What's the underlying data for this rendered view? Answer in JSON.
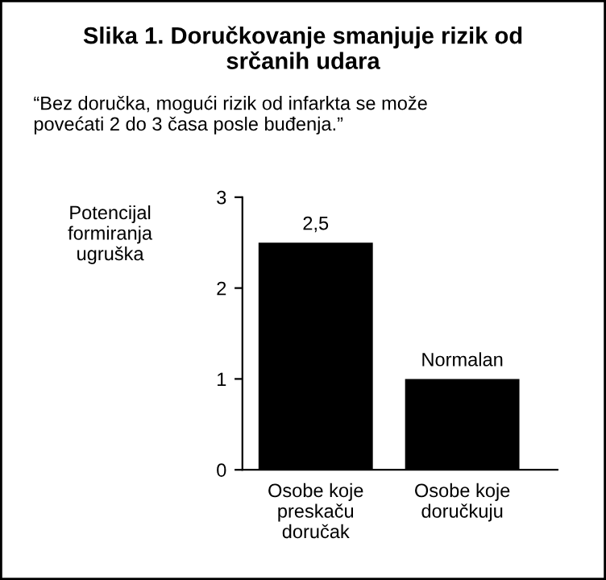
{
  "chart_data": {
    "type": "bar",
    "title": "Slika 1. Doručkovanje smanjuje rizik od\nsrčanih udara",
    "subtitle": "“Bez doručka, mogući rizik od infarkta se može\npovećati 2 do 3 časa posle buđenja.”",
    "ylabel": "Potencijal\nformiranja\nugruška",
    "categories": [
      "Osobe koje\npreskaču\ndoručak",
      "Osobe koje\ndoručkuju"
    ],
    "values": [
      2.5,
      1
    ],
    "color": "#000000",
    "value_labels": [
      "2,5",
      "Normalan"
    ],
    "ylim": [
      0,
      3
    ],
    "yticks": [
      0,
      1,
      2,
      3
    ],
    "grid": false,
    "legend": false
  }
}
